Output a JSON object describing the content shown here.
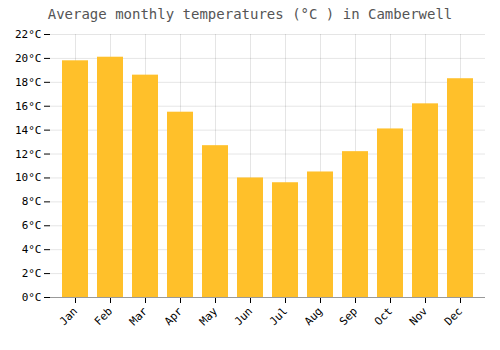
{
  "chart_data": {
    "type": "bar",
    "title": "Average monthly temperatures (°C ) in Camberwell",
    "categories": [
      "Jan",
      "Feb",
      "Mar",
      "Apr",
      "May",
      "Jun",
      "Jul",
      "Aug",
      "Sep",
      "Oct",
      "Nov",
      "Dec"
    ],
    "values": [
      19.8,
      20.1,
      18.6,
      15.5,
      12.7,
      10.0,
      9.6,
      10.5,
      12.2,
      14.1,
      16.2,
      18.3
    ],
    "color": "#FFC02A",
    "ylim": [
      0,
      22
    ],
    "yticks": [
      {
        "value": 0,
        "label": "0°C"
      },
      {
        "value": 2,
        "label": "2°C"
      },
      {
        "value": 4,
        "label": "4°C"
      },
      {
        "value": 6,
        "label": "6°C"
      },
      {
        "value": 8,
        "label": "8°C"
      },
      {
        "value": 10,
        "label": "10°C"
      },
      {
        "value": 12,
        "label": "12°C"
      },
      {
        "value": 14,
        "label": "14°C"
      },
      {
        "value": 16,
        "label": "16°C"
      },
      {
        "value": 18,
        "label": "18°C"
      },
      {
        "value": 20,
        "label": "20°C"
      },
      {
        "value": 22,
        "label": "22°C"
      }
    ],
    "grid": true
  }
}
